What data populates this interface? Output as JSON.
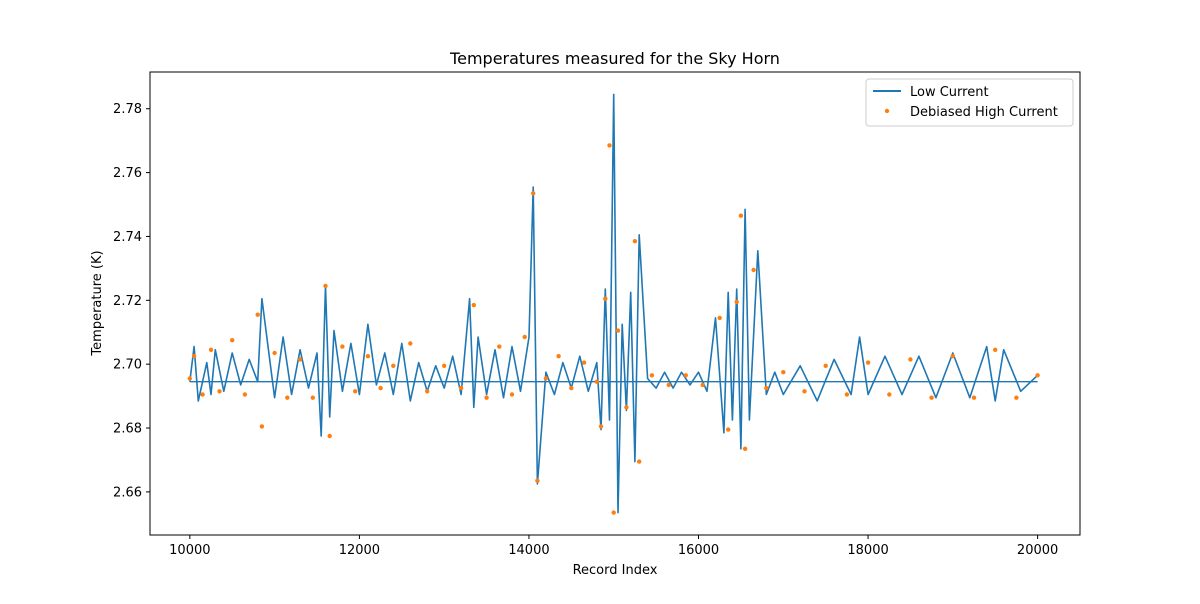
{
  "chart_data": {
    "type": "line",
    "title": "Temperatures measured for the Sky Horn",
    "xlabel": "Record Index",
    "ylabel": "Temperature (K)",
    "xlim": [
      9530,
      20500
    ],
    "ylim": [
      2.6465,
      2.7915
    ],
    "x_ticks": [
      10000,
      12000,
      14000,
      16000,
      18000,
      20000
    ],
    "x_tick_labels": [
      "10000",
      "12000",
      "14000",
      "16000",
      "18000",
      "20000"
    ],
    "y_ticks": [
      2.66,
      2.68,
      2.7,
      2.72,
      2.74,
      2.76,
      2.78
    ],
    "y_tick_labels": [
      "2.66",
      "2.68",
      "2.70",
      "2.72",
      "2.74",
      "2.76",
      "2.78"
    ],
    "grid": false,
    "legend_position": "top-right",
    "baseline": 2.6945,
    "series": [
      {
        "name": "Low Current",
        "style": "line",
        "color": "#1f77b4",
        "x": [
          10000,
          10050,
          10100,
          10200,
          10250,
          10300,
          10400,
          10500,
          10600,
          10700,
          10800,
          10850,
          11000,
          11100,
          11200,
          11300,
          11400,
          11500,
          11550,
          11600,
          11650,
          11700,
          11800,
          11900,
          12000,
          12100,
          12200,
          12300,
          12400,
          12500,
          12600,
          12700,
          12800,
          12900,
          13000,
          13100,
          13200,
          13300,
          13350,
          13400,
          13500,
          13600,
          13700,
          13800,
          13900,
          14000,
          14050,
          14100,
          14200,
          14300,
          14400,
          14500,
          14600,
          14700,
          14800,
          14850,
          14900,
          14950,
          15000,
          15050,
          15100,
          15150,
          15200,
          15250,
          15300,
          15400,
          15500,
          15600,
          15700,
          15800,
          15900,
          16000,
          16100,
          16200,
          16300,
          16350,
          16400,
          16450,
          16500,
          16550,
          16600,
          16700,
          16800,
          16900,
          17000,
          17200,
          17400,
          17600,
          17800,
          17900,
          18000,
          18200,
          18400,
          18600,
          18800,
          19000,
          19200,
          19400,
          19500,
          19600,
          19800,
          20000
        ],
        "y": [
          2.6945,
          2.7055,
          2.6885,
          2.7005,
          2.6905,
          2.7045,
          2.6915,
          2.7035,
          2.6935,
          2.7015,
          2.6945,
          2.7205,
          2.6895,
          2.7085,
          2.6905,
          2.7045,
          2.6925,
          2.7035,
          2.6775,
          2.7245,
          2.6835,
          2.7105,
          2.6915,
          2.7065,
          2.6905,
          2.7125,
          2.6935,
          2.7035,
          2.6905,
          2.7065,
          2.6885,
          2.7005,
          2.6915,
          2.6995,
          2.6925,
          2.7025,
          2.6905,
          2.7205,
          2.6865,
          2.7085,
          2.6905,
          2.7045,
          2.6895,
          2.7055,
          2.6915,
          2.7085,
          2.7555,
          2.6625,
          2.6975,
          2.6905,
          2.7005,
          2.6925,
          2.7025,
          2.6915,
          2.7005,
          2.6795,
          2.7235,
          2.6825,
          2.7845,
          2.6535,
          2.7125,
          2.6855,
          2.7225,
          2.6695,
          2.7405,
          2.6955,
          2.6925,
          2.6975,
          2.6925,
          2.6975,
          2.6935,
          2.6975,
          2.6915,
          2.7145,
          2.6785,
          2.7225,
          2.6825,
          2.7235,
          2.6735,
          2.7485,
          2.6825,
          2.7355,
          2.6905,
          2.6975,
          2.6905,
          2.6995,
          2.6885,
          2.7015,
          2.6905,
          2.7085,
          2.6905,
          2.7025,
          2.6905,
          2.7025,
          2.6895,
          2.7035,
          2.6895,
          2.7055,
          2.6885,
          2.7045,
          2.6915,
          2.6965
        ]
      },
      {
        "name": "Debiased High Current",
        "style": "scatter",
        "color": "#ff7f0e",
        "x": [
          10000,
          10050,
          10150,
          10250,
          10350,
          10500,
          10650,
          10800,
          10850,
          11000,
          11150,
          11300,
          11450,
          11600,
          11650,
          11800,
          11950,
          12100,
          12250,
          12400,
          12600,
          12800,
          13000,
          13200,
          13350,
          13500,
          13650,
          13800,
          13950,
          14050,
          14100,
          14200,
          14350,
          14500,
          14650,
          14800,
          14850,
          14900,
          14950,
          15000,
          15050,
          15150,
          15250,
          15300,
          15450,
          15650,
          15850,
          16050,
          16250,
          16350,
          16450,
          16500,
          16550,
          16650,
          16800,
          17000,
          17250,
          17500,
          17750,
          18000,
          18250,
          18500,
          18750,
          19000,
          19250,
          19500,
          19750,
          20000
        ],
        "y": [
          2.6955,
          2.7025,
          2.6905,
          2.7045,
          2.6915,
          2.7075,
          2.6905,
          2.7155,
          2.6805,
          2.7035,
          2.6895,
          2.7015,
          2.6895,
          2.7245,
          2.6775,
          2.7055,
          2.6915,
          2.7025,
          2.6925,
          2.6995,
          2.7065,
          2.6915,
          2.6995,
          2.6925,
          2.7185,
          2.6895,
          2.7055,
          2.6905,
          2.7085,
          2.7535,
          2.6635,
          2.6955,
          2.7025,
          2.6925,
          2.7005,
          2.6945,
          2.6805,
          2.7205,
          2.7685,
          2.6535,
          2.7105,
          2.6865,
          2.7385,
          2.6695,
          2.6965,
          2.6935,
          2.6965,
          2.6935,
          2.7145,
          2.6795,
          2.7195,
          2.7465,
          2.6735,
          2.7295,
          2.6925,
          2.6975,
          2.6915,
          2.6995,
          2.6905,
          2.7005,
          2.6905,
          2.7015,
          2.6895,
          2.7025,
          2.6895,
          2.7045,
          2.6895,
          2.6965
        ]
      }
    ]
  }
}
